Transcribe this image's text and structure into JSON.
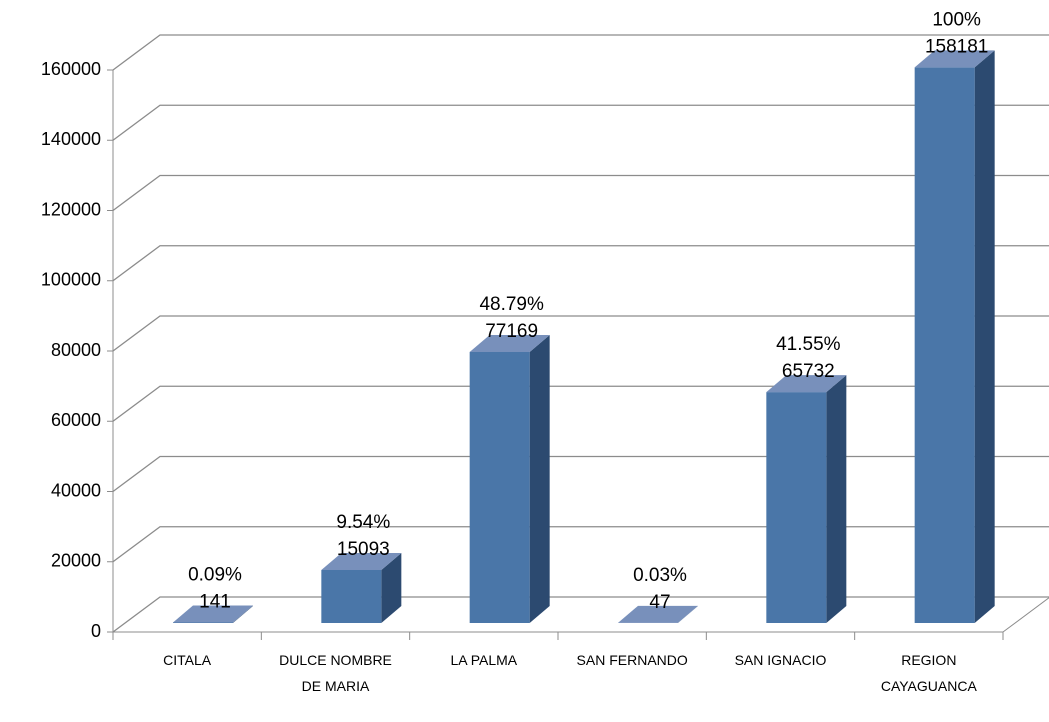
{
  "chart_data": {
    "type": "bar3d",
    "categories": [
      "CITALA",
      "DULCE NOMBRE DE MARIA",
      "LA PALMA",
      "SAN FERNANDO",
      "SAN IGNACIO",
      "REGION CAYAGUANCA"
    ],
    "values": [
      141,
      15093,
      77169,
      47,
      65732,
      158181
    ],
    "percent_labels": [
      "0.09%",
      "9.54%",
      "48.79%",
      "0.03%",
      "41.55%",
      "100%"
    ],
    "color": "#4a76a8",
    "ylim": [
      0,
      160000
    ],
    "yticks": [
      0,
      20000,
      40000,
      60000,
      80000,
      100000,
      120000,
      140000,
      160000
    ],
    "grid": true
  }
}
